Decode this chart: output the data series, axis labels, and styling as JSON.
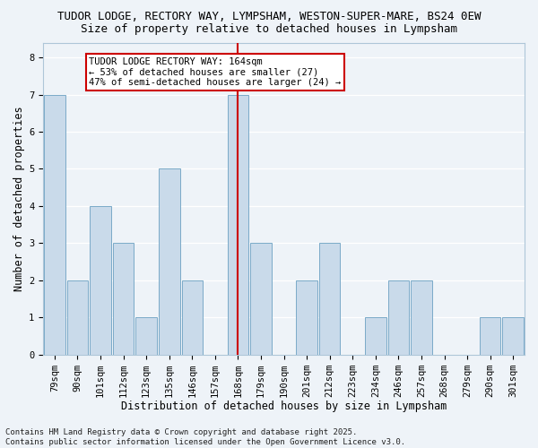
{
  "title1": "TUDOR LODGE, RECTORY WAY, LYMPSHAM, WESTON-SUPER-MARE, BS24 0EW",
  "title2": "Size of property relative to detached houses in Lympsham",
  "xlabel": "Distribution of detached houses by size in Lympsham",
  "ylabel": "Number of detached properties",
  "categories": [
    "79sqm",
    "90sqm",
    "101sqm",
    "112sqm",
    "123sqm",
    "135sqm",
    "146sqm",
    "157sqm",
    "168sqm",
    "179sqm",
    "190sqm",
    "201sqm",
    "212sqm",
    "223sqm",
    "234sqm",
    "246sqm",
    "257sqm",
    "268sqm",
    "279sqm",
    "290sqm",
    "301sqm"
  ],
  "values": [
    7,
    2,
    4,
    3,
    1,
    5,
    2,
    0,
    7,
    3,
    0,
    2,
    3,
    0,
    1,
    2,
    2,
    0,
    0,
    1,
    1
  ],
  "bar_color": "#c9daea",
  "bar_edge_color": "#7aaac8",
  "vline_index": 8,
  "vline_color": "#cc0000",
  "annotation_text": "TUDOR LODGE RECTORY WAY: 164sqm\n← 53% of detached houses are smaller (27)\n47% of semi-detached houses are larger (24) →",
  "annotation_box_facecolor": "#ffffff",
  "annotation_box_edgecolor": "#cc0000",
  "ylim": [
    0,
    8.4
  ],
  "yticks": [
    0,
    1,
    2,
    3,
    4,
    5,
    6,
    7,
    8
  ],
  "footnote": "Contains HM Land Registry data © Crown copyright and database right 2025.\nContains public sector information licensed under the Open Government Licence v3.0.",
  "background_color": "#eef3f8",
  "plot_bg_color": "#eef3f8",
  "grid_color": "#ffffff",
  "title1_fontsize": 9,
  "title2_fontsize": 9,
  "axis_label_fontsize": 8.5,
  "tick_fontsize": 7.5,
  "footnote_fontsize": 6.5,
  "annot_fontsize": 7.5
}
